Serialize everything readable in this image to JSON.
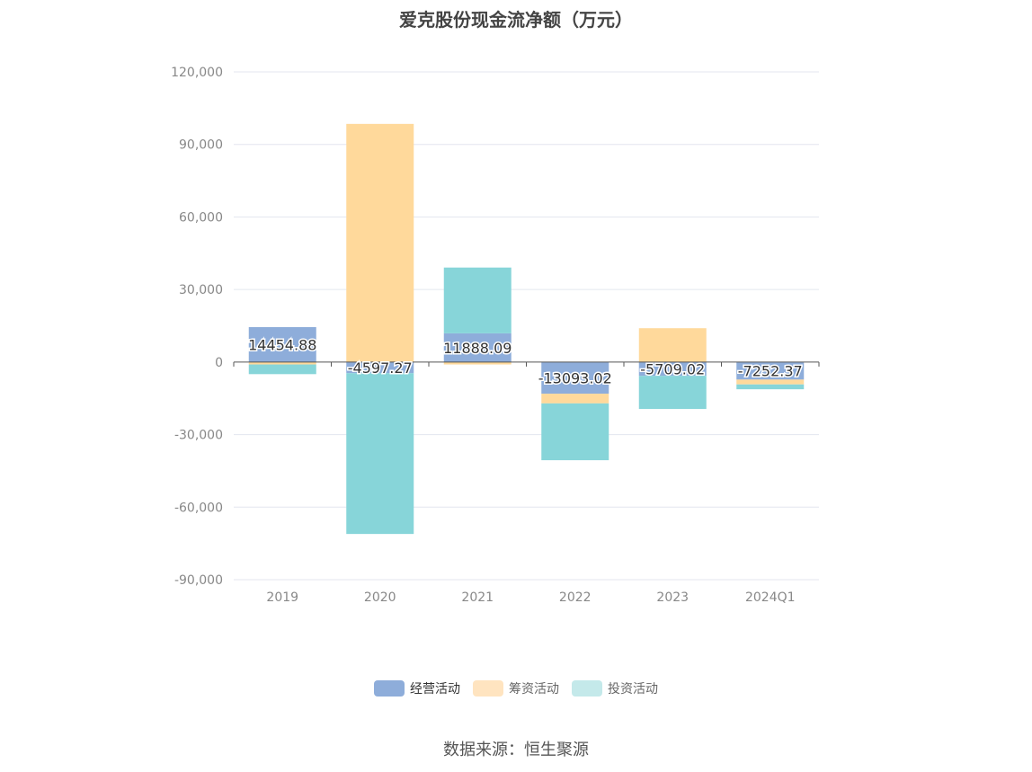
{
  "title": "爱克股份现金流净额（万元）",
  "source": "数据来源：恒生聚源",
  "colors": {
    "operating": "#8eadda",
    "financing": "#ffd99b",
    "investing": "#87d5d9",
    "grid": "#e3e6ef",
    "axis": "#555555",
    "tick": "#888888"
  },
  "legend": [
    {
      "name": "经营活动",
      "swatch": "#8eadda",
      "active": true
    },
    {
      "name": "筹资活动",
      "swatch": "#ffe4c0",
      "active": false
    },
    {
      "name": "投资活动",
      "swatch": "#c4e9ea",
      "active": false
    }
  ],
  "chart_data": {
    "type": "bar",
    "stacked": true,
    "categories": [
      "2019",
      "2020",
      "2021",
      "2022",
      "2023",
      "2024Q1"
    ],
    "series": [
      {
        "name": "经营活动",
        "values": [
          14454.88,
          -4597.27,
          11888.09,
          -13093.02,
          -5709.02,
          -7252.37
        ]
      },
      {
        "name": "筹资活动",
        "values": [
          -1000,
          98500,
          -1000,
          -4000,
          14000,
          -2000
        ]
      },
      {
        "name": "投资活动",
        "values": [
          -4000,
          -66500,
          27200,
          -23500,
          -13700,
          -2000
        ]
      }
    ],
    "data_labels": [
      "14454.88",
      "-4597.27",
      "11888.09",
      "-13093.02",
      "-5709.02",
      "-7252.37"
    ],
    "yticks": [
      "120,000",
      "90,000",
      "60,000",
      "30,000",
      "0",
      "-30,000",
      "-60,000",
      "-90,000"
    ],
    "ytick_values": [
      120000,
      90000,
      60000,
      30000,
      0,
      -30000,
      -60000,
      -90000
    ],
    "ylim": [
      -90000,
      120000
    ],
    "grid": true,
    "legend_position": "bottom"
  }
}
